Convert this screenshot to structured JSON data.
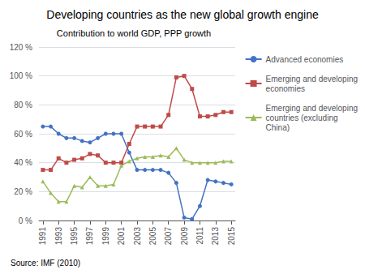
{
  "chart_data": {
    "type": "line",
    "title": "Developing countries as the new global growth engine",
    "subtitle": "Contribution to world GDP, PPP growth",
    "source": "Source: IMF (2010)",
    "x": [
      1991,
      1992,
      1993,
      1994,
      1995,
      1996,
      1997,
      1998,
      1999,
      2000,
      2001,
      2002,
      2003,
      2004,
      2005,
      2006,
      2007,
      2008,
      2009,
      2010,
      2011,
      2012,
      2013,
      2014,
      2015
    ],
    "series": [
      {
        "name": "Advanced economies",
        "color": "#4472C4",
        "marker": "circle",
        "values": [
          65,
          65,
          60,
          57,
          57,
          55,
          54,
          57,
          60,
          60,
          60,
          47,
          35,
          35,
          35,
          35,
          33,
          26,
          2,
          1,
          10,
          28,
          27,
          26,
          25
        ]
      },
      {
        "name": "Emerging and developing\neconomies",
        "color": "#BE4B48",
        "marker": "square",
        "values": [
          35,
          35,
          43,
          40,
          42,
          43,
          46,
          45,
          40,
          40,
          40,
          53,
          65,
          65,
          65,
          65,
          73,
          99,
          100,
          91,
          72,
          72,
          73,
          75,
          75
        ]
      },
      {
        "name": "Emerging and developing\ncountries (excluding\nChina)",
        "color": "#9BBB59",
        "marker": "triangle",
        "values": [
          27,
          19,
          13,
          13,
          24,
          23,
          30,
          24,
          24,
          25,
          38,
          41,
          43,
          44,
          44,
          45,
          44,
          50,
          42,
          40,
          40,
          40,
          40,
          41,
          41
        ]
      }
    ],
    "xlim": [
      1990.5,
      2015.5
    ],
    "xticks": [
      1991,
      1993,
      1995,
      1997,
      1999,
      2001,
      2003,
      2005,
      2007,
      2009,
      2011,
      2013,
      2015
    ],
    "ylim": [
      0,
      120
    ],
    "yticks": [
      {
        "value": 0,
        "label": "0 %"
      },
      {
        "value": 20,
        "label": "20 %"
      },
      {
        "value": 40,
        "label": "40 %"
      },
      {
        "value": 60,
        "label": "60 %"
      },
      {
        "value": 80,
        "label": "80 %"
      },
      {
        "value": 100,
        "label": "100 %"
      },
      {
        "value": 120,
        "label": "120 %"
      }
    ],
    "grid": true,
    "legend": "right"
  }
}
